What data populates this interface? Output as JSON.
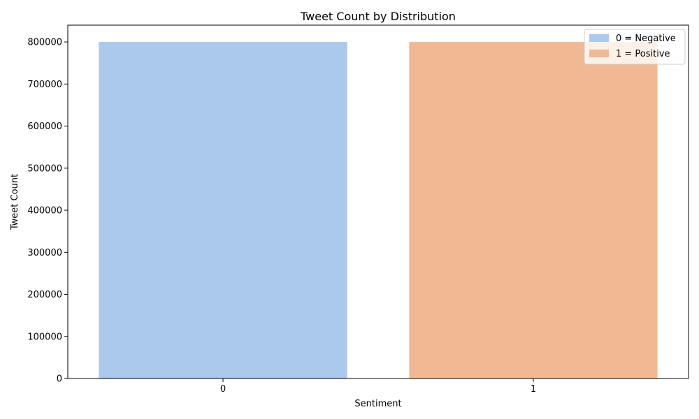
{
  "chart_data": {
    "type": "bar",
    "title": "Tweet Count by Distribution",
    "xlabel": "Sentiment",
    "ylabel": "Tweet Count",
    "categories": [
      "0",
      "1"
    ],
    "values": [
      800000,
      800000
    ],
    "colors": [
      "#abc9ed",
      "#f0b893"
    ],
    "ylim": [
      0,
      840000
    ],
    "yticks": [
      0,
      100000,
      200000,
      300000,
      400000,
      500000,
      600000,
      700000,
      800000
    ],
    "ytick_labels": [
      "0",
      "100000",
      "200000",
      "300000",
      "400000",
      "500000",
      "600000",
      "700000",
      "800000"
    ],
    "grid": false,
    "legend": {
      "placement": "top-right",
      "entries": [
        {
          "label": "0 = Negative",
          "color": "#abc9ed"
        },
        {
          "label": "1 = Positive",
          "color": "#f0b893"
        }
      ]
    }
  }
}
